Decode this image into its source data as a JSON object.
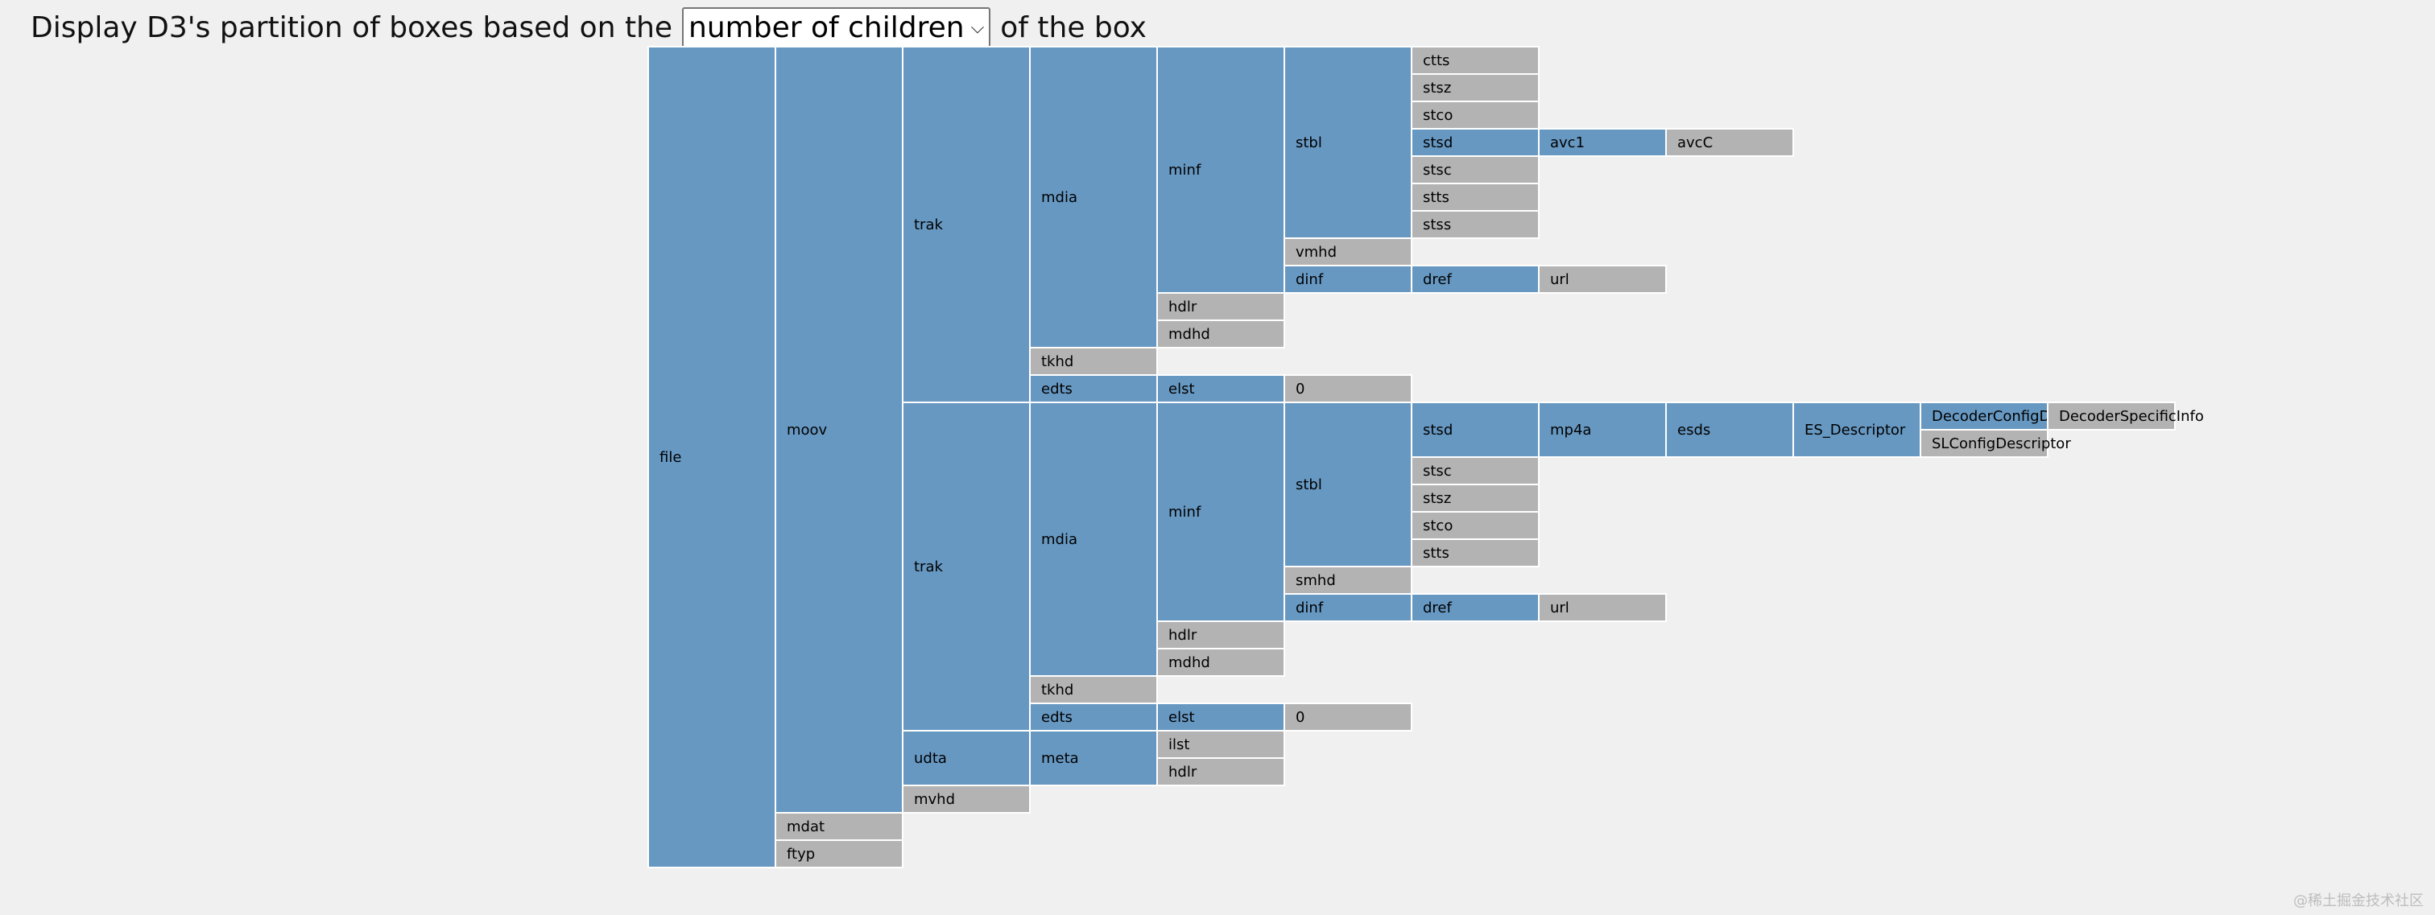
{
  "header": {
    "prefix": "Display D3's partition of boxes based on the",
    "select_value": "number of children",
    "suffix": "of the box"
  },
  "colors": {
    "parent_box": "#6798c2",
    "leaf_box": "#b3b3b3",
    "background": "#f0f0f0"
  },
  "chart_data": {
    "type": "partition",
    "value_metric": "number of children",
    "tree": {
      "name": "file",
      "children": [
        {
          "name": "moov",
          "children": [
            {
              "name": "trak",
              "children": [
                {
                  "name": "mdia",
                  "children": [
                    {
                      "name": "minf",
                      "children": [
                        {
                          "name": "stbl",
                          "children": [
                            {
                              "name": "ctts"
                            },
                            {
                              "name": "stsz"
                            },
                            {
                              "name": "stco"
                            },
                            {
                              "name": "stsd",
                              "children": [
                                {
                                  "name": "avc1",
                                  "children": [
                                    {
                                      "name": "avcC"
                                    }
                                  ]
                                }
                              ]
                            },
                            {
                              "name": "stsc"
                            },
                            {
                              "name": "stts"
                            },
                            {
                              "name": "stss"
                            }
                          ]
                        },
                        {
                          "name": "vmhd"
                        },
                        {
                          "name": "dinf",
                          "children": [
                            {
                              "name": "dref",
                              "children": [
                                {
                                  "name": "url"
                                }
                              ]
                            }
                          ]
                        }
                      ]
                    },
                    {
                      "name": "hdlr"
                    },
                    {
                      "name": "mdhd"
                    }
                  ]
                },
                {
                  "name": "tkhd"
                },
                {
                  "name": "edts",
                  "children": [
                    {
                      "name": "elst",
                      "children": [
                        {
                          "name": "0"
                        }
                      ]
                    }
                  ]
                }
              ]
            },
            {
              "name": "trak",
              "children": [
                {
                  "name": "mdia",
                  "children": [
                    {
                      "name": "minf",
                      "children": [
                        {
                          "name": "stbl",
                          "children": [
                            {
                              "name": "stsd",
                              "children": [
                                {
                                  "name": "mp4a",
                                  "children": [
                                    {
                                      "name": "esds",
                                      "children": [
                                        {
                                          "name": "ES_Descriptor",
                                          "children": [
                                            {
                                              "name": "DecoderConfigDescriptor",
                                              "children": [
                                                {
                                                  "name": "DecoderSpecificInfo"
                                                }
                                              ]
                                            },
                                            {
                                              "name": "SLConfigDescriptor"
                                            }
                                          ]
                                        }
                                      ]
                                    }
                                  ]
                                }
                              ]
                            },
                            {
                              "name": "stsc"
                            },
                            {
                              "name": "stsz"
                            },
                            {
                              "name": "stco"
                            },
                            {
                              "name": "stts"
                            }
                          ]
                        },
                        {
                          "name": "smhd"
                        },
                        {
                          "name": "dinf",
                          "children": [
                            {
                              "name": "dref",
                              "children": [
                                {
                                  "name": "url"
                                }
                              ]
                            }
                          ]
                        }
                      ]
                    },
                    {
                      "name": "hdlr"
                    },
                    {
                      "name": "mdhd"
                    }
                  ]
                },
                {
                  "name": "tkhd"
                },
                {
                  "name": "edts",
                  "children": [
                    {
                      "name": "elst",
                      "children": [
                        {
                          "name": "0"
                        }
                      ]
                    }
                  ]
                }
              ]
            },
            {
              "name": "udta",
              "children": [
                {
                  "name": "meta",
                  "children": [
                    {
                      "name": "ilst"
                    },
                    {
                      "name": "hdlr"
                    }
                  ]
                }
              ]
            },
            {
              "name": "mvhd"
            }
          ]
        },
        {
          "name": "mdat"
        },
        {
          "name": "ftyp"
        }
      ]
    }
  },
  "watermark": "@稀土掘金技术社区"
}
